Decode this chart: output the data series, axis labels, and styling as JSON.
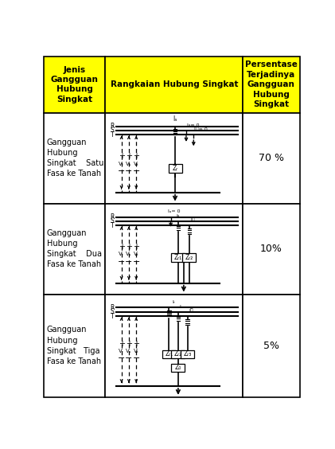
{
  "col1_header": "Jenis\nGangguan\nHubung\nSingkat",
  "col2_header": "Rangkaian Hubung Singkat",
  "col3_header": "Persentase\nTerjadinya\nGangguan\nHubung\nSingkat",
  "row1_col1": "Gangguan\nHubung\nSingkat    Satu\nFasa ke Tanah",
  "row1_col3": "70 %",
  "row2_col1": "Gangguan\nHubung\nSingkat    Dua\nFasa ke Tanah",
  "row2_col3": "10%",
  "row3_col1": "Gangguan\nHubung\nSingkat   Tiga\nFasa ke Tanah",
  "row3_col3": "5%",
  "header_bg": "#FFFF00",
  "cell_bg": "#FFFFFF",
  "border_color": "#000000",
  "font_size_header": 7.5,
  "font_size_cell": 7.0,
  "font_size_percent": 9.0
}
